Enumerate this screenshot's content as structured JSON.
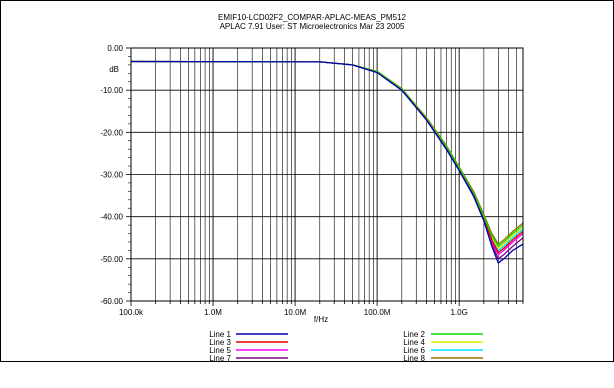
{
  "chart_data": {
    "type": "line",
    "title": "EMIF10-LCD02F2_COMPAR-APLAC-MEAS_PM512",
    "subtitle": "APLAC 7.91 User: ST Microelectronics  Mar 23 2005",
    "xlabel": "f/Hz",
    "ylabel": "dB",
    "x_scale": "log",
    "xlim": [
      100000,
      6000000000
    ],
    "ylim": [
      -60,
      0
    ],
    "grid": true,
    "x_ticks": [
      {
        "value": 100000,
        "label": "100.0k"
      },
      {
        "value": 1000000,
        "label": "1.0M"
      },
      {
        "value": 10000000,
        "label": "10.0M"
      },
      {
        "value": 100000000,
        "label": "100.0M"
      },
      {
        "value": 1000000000,
        "label": "1.0G"
      }
    ],
    "y_ticks": [
      {
        "value": 0,
        "label": "0.00"
      },
      {
        "value": -10,
        "label": "-10.00"
      },
      {
        "value": -20,
        "label": "-20.00"
      },
      {
        "value": -30,
        "label": "-30.00"
      },
      {
        "value": -40,
        "label": "-40.00"
      },
      {
        "value": -50,
        "label": "-50.00"
      },
      {
        "value": -60,
        "label": "-60.00"
      }
    ],
    "legend_placement": "bottom",
    "series": [
      {
        "name": "Line 1",
        "color": "#0000b0",
        "x": [
          100000,
          20000000,
          50000000,
          100000000,
          200000000,
          400000000,
          700000000,
          1000000000,
          1500000000,
          2000000000,
          2500000000,
          3000000000,
          3500000000,
          4500000000,
          6000000000
        ],
        "values": [
          -3.2,
          -3.3,
          -4.0,
          -5.8,
          -10.0,
          -17.0,
          -24.0,
          -29.0,
          -35.0,
          -41.0,
          -47.0,
          -51.0,
          -50.0,
          -48.0,
          -46.5
        ]
      },
      {
        "name": "Line 2",
        "color": "#00e000",
        "x": [
          100000,
          20000000,
          50000000,
          100000000,
          200000000,
          400000000,
          700000000,
          1000000000,
          1500000000,
          2000000000,
          2500000000,
          3000000000,
          3500000000,
          4500000000,
          6000000000
        ],
        "values": [
          -3.2,
          -3.3,
          -4.0,
          -5.6,
          -9.8,
          -16.8,
          -23.5,
          -28.5,
          -34.5,
          -40.0,
          -44.5,
          -47.0,
          -46.0,
          -44.0,
          -42.0
        ]
      },
      {
        "name": "Line 3",
        "color": "#e00000",
        "x": [
          100000,
          20000000,
          50000000,
          100000000,
          200000000,
          400000000,
          700000000,
          1000000000,
          1500000000,
          2000000000,
          2500000000,
          3000000000,
          3500000000,
          4500000000,
          6000000000
        ],
        "values": [
          -3.2,
          -3.3,
          -4.0,
          -5.7,
          -9.9,
          -16.9,
          -23.8,
          -28.8,
          -34.8,
          -40.5,
          -45.5,
          -48.5,
          -47.5,
          -45.5,
          -43.5
        ]
      },
      {
        "name": "Line 4",
        "color": "#e8e800",
        "x": [
          100000,
          20000000,
          50000000,
          100000000,
          200000000,
          400000000,
          700000000,
          1000000000,
          1500000000,
          2000000000,
          2500000000,
          3000000000,
          3500000000,
          4500000000,
          6000000000
        ],
        "values": [
          -3.2,
          -3.3,
          -4.0,
          -5.6,
          -9.8,
          -16.8,
          -23.6,
          -28.6,
          -34.6,
          -40.2,
          -44.8,
          -47.5,
          -46.5,
          -44.5,
          -42.5
        ]
      },
      {
        "name": "Line 5",
        "color": "#ff00ff",
        "x": [
          100000,
          20000000,
          50000000,
          100000000,
          200000000,
          400000000,
          700000000,
          1000000000,
          1500000000,
          2000000000,
          2500000000,
          3000000000,
          3500000000,
          4500000000,
          6000000000
        ],
        "values": [
          -3.2,
          -3.3,
          -4.0,
          -5.7,
          -9.9,
          -17.0,
          -23.9,
          -28.9,
          -35.0,
          -40.8,
          -46.0,
          -49.0,
          -48.0,
          -46.0,
          -44.0
        ]
      },
      {
        "name": "Line 6",
        "color": "#00e0ff",
        "x": [
          100000,
          20000000,
          50000000,
          100000000,
          200000000,
          400000000,
          700000000,
          1000000000,
          1500000000,
          2000000000,
          2500000000,
          3000000000,
          3500000000,
          4500000000,
          6000000000
        ],
        "values": [
          -3.2,
          -3.3,
          -4.0,
          -5.7,
          -9.9,
          -16.9,
          -23.7,
          -28.7,
          -34.7,
          -40.3,
          -45.0,
          -48.0,
          -47.0,
          -45.0,
          -43.0
        ]
      },
      {
        "name": "Line 7",
        "color": "#800080",
        "x": [
          100000,
          20000000,
          50000000,
          100000000,
          200000000,
          400000000,
          700000000,
          1000000000,
          1500000000,
          2000000000,
          2500000000,
          3000000000,
          3500000000,
          4500000000,
          6000000000
        ],
        "values": [
          -3.2,
          -3.3,
          -4.0,
          -5.8,
          -10.0,
          -17.1,
          -24.1,
          -29.1,
          -35.2,
          -41.0,
          -46.5,
          -50.0,
          -49.0,
          -47.0,
          -45.0
        ]
      },
      {
        "name": "Line 8",
        "color": "#a07000",
        "x": [
          100000,
          20000000,
          50000000,
          100000000,
          200000000,
          400000000,
          700000000,
          1000000000,
          1500000000,
          2000000000,
          2500000000,
          3000000000,
          3500000000,
          4500000000,
          6000000000
        ],
        "values": [
          -3.2,
          -3.3,
          -4.0,
          -5.5,
          -9.6,
          -16.5,
          -23.2,
          -28.2,
          -34.0,
          -39.5,
          -44.0,
          -46.5,
          -45.5,
          -43.5,
          -41.5
        ]
      }
    ]
  }
}
